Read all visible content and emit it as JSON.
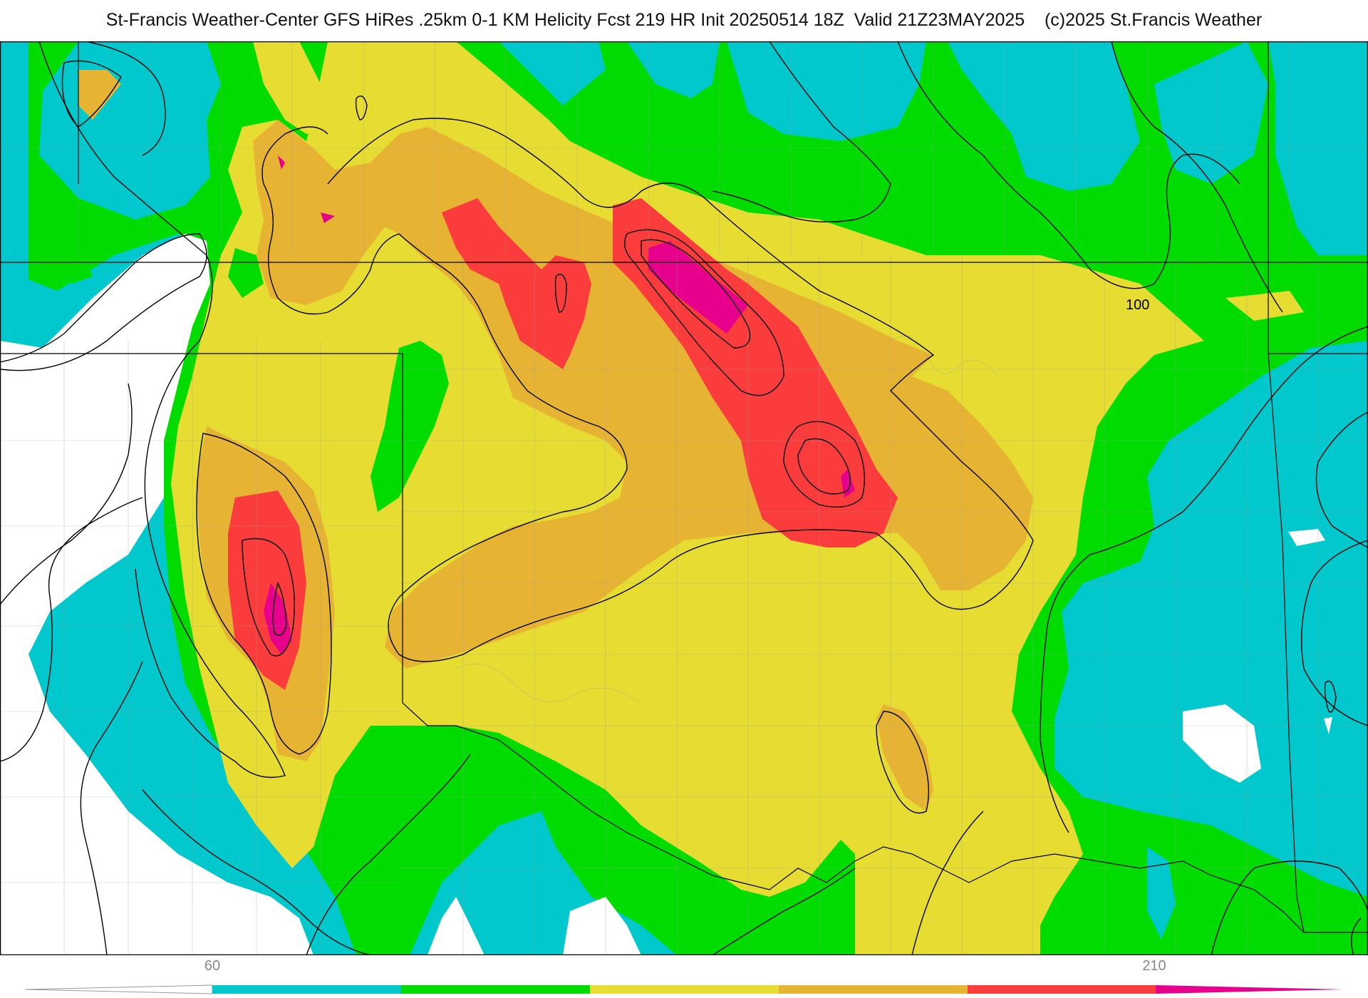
{
  "header": {
    "title": "St-Francis Weather-Center GFS HiRes .25km 0-1 KM Helicity Fcst 219 HR Init 20250514 18Z  Valid 21Z23MAY2025    (c)2025 St.Francis Weather"
  },
  "map": {
    "contour_label": "100",
    "fill_colors": {
      "below": "#ffffff",
      "band1": "#00c8cc",
      "band2": "#00dc00",
      "band3": "#e6dc32",
      "band4": "#e6b432",
      "band5": "#fa3c3c",
      "band6": "#e6008c"
    },
    "line_color": "#000000"
  },
  "color_scale": {
    "tick_labels": [
      "60",
      "210"
    ],
    "colors": [
      "#00c8cc",
      "#00dc00",
      "#e6dc32",
      "#e6b432",
      "#fa3c3c",
      "#e6008c"
    ]
  }
}
